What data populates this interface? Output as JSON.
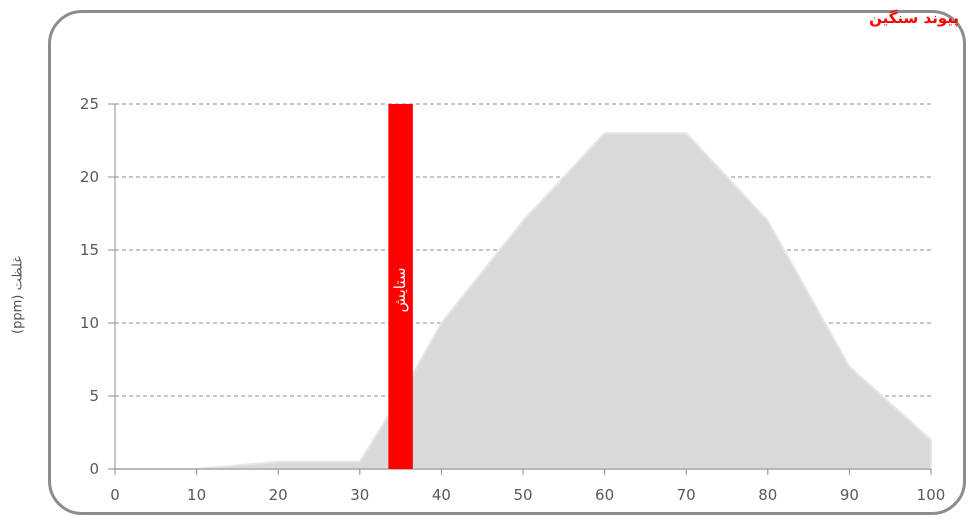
{
  "header": {
    "corner_title": "پیوند سنگین"
  },
  "chart_data": {
    "type": "area",
    "title": "",
    "xlabel": "",
    "ylabel": "غلظت (ppm)",
    "xlim": [
      0,
      100
    ],
    "ylim": [
      0,
      25
    ],
    "grid": true,
    "x_ticks": [
      "0",
      "10",
      "20",
      "30",
      "40",
      "50",
      "60",
      "70",
      "80",
      "90",
      "100"
    ],
    "y_ticks": [
      "0",
      "5",
      "10",
      "15",
      "20",
      "25"
    ],
    "series": [
      {
        "color": "#d9d9d9",
        "x": [
          0,
          10,
          20,
          30,
          35,
          40,
          50,
          60,
          70,
          80,
          90,
          100
        ],
        "y": [
          0,
          0,
          0.5,
          0.5,
          5,
          10,
          17,
          23,
          23,
          17,
          7,
          2
        ]
      }
    ],
    "marker": {
      "label": "ستایش",
      "x_start": 33.5,
      "x_end": 36.5,
      "y_top": 25,
      "color": "#ff0000"
    }
  }
}
